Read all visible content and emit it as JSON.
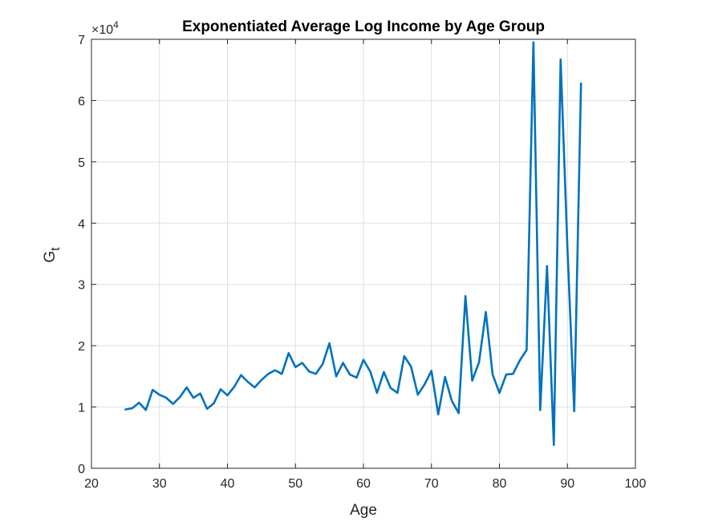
{
  "chart_data": {
    "type": "line",
    "title": "Exponentiated Average Log Income by Age Group",
    "xlabel": "Age",
    "ylabel": "G",
    "ylabel_subscript": "t",
    "xlim": [
      20,
      100
    ],
    "ylim": [
      0,
      70000
    ],
    "x_ticks": [
      20,
      30,
      40,
      50,
      60,
      70,
      80,
      90,
      100
    ],
    "y_ticks": [
      0,
      10000,
      20000,
      30000,
      40000,
      50000,
      60000,
      70000
    ],
    "y_tick_labels": [
      "0",
      "1",
      "2",
      "3",
      "4",
      "5",
      "6",
      "7"
    ],
    "y_exponent_base": "×10",
    "y_exponent_power": "4",
    "grid": true,
    "series": [
      {
        "color": "#0072BD",
        "x": [
          25,
          26,
          27,
          28,
          29,
          30,
          31,
          32,
          33,
          34,
          35,
          36,
          37,
          38,
          39,
          40,
          41,
          42,
          43,
          44,
          45,
          46,
          47,
          48,
          49,
          50,
          51,
          52,
          53,
          54,
          55,
          56,
          57,
          58,
          59,
          60,
          61,
          62,
          63,
          64,
          65,
          66,
          67,
          68,
          69,
          70,
          71,
          72,
          73,
          74,
          75,
          76,
          77,
          78,
          79,
          80,
          81,
          82,
          83,
          84,
          85,
          86,
          87,
          88,
          89,
          90,
          91,
          92
        ],
        "y": [
          9600,
          9800,
          10700,
          9500,
          12800,
          12000,
          11500,
          10500,
          11600,
          13200,
          11500,
          12200,
          9700,
          10600,
          12900,
          11900,
          13300,
          15200,
          14100,
          13200,
          14400,
          15400,
          16000,
          15400,
          18800,
          16500,
          17200,
          15800,
          15400,
          17000,
          20400,
          15000,
          17200,
          15300,
          14800,
          17700,
          15800,
          12300,
          15700,
          13100,
          12300,
          18300,
          16600,
          12000,
          13700,
          15900,
          8800,
          14900,
          11000,
          9000,
          28100,
          14300,
          17300,
          25500,
          15300,
          12300,
          15300,
          15400,
          17600,
          19300,
          69500,
          9500,
          33000,
          3800,
          66700,
          36000,
          9300,
          62800
        ]
      }
    ]
  }
}
